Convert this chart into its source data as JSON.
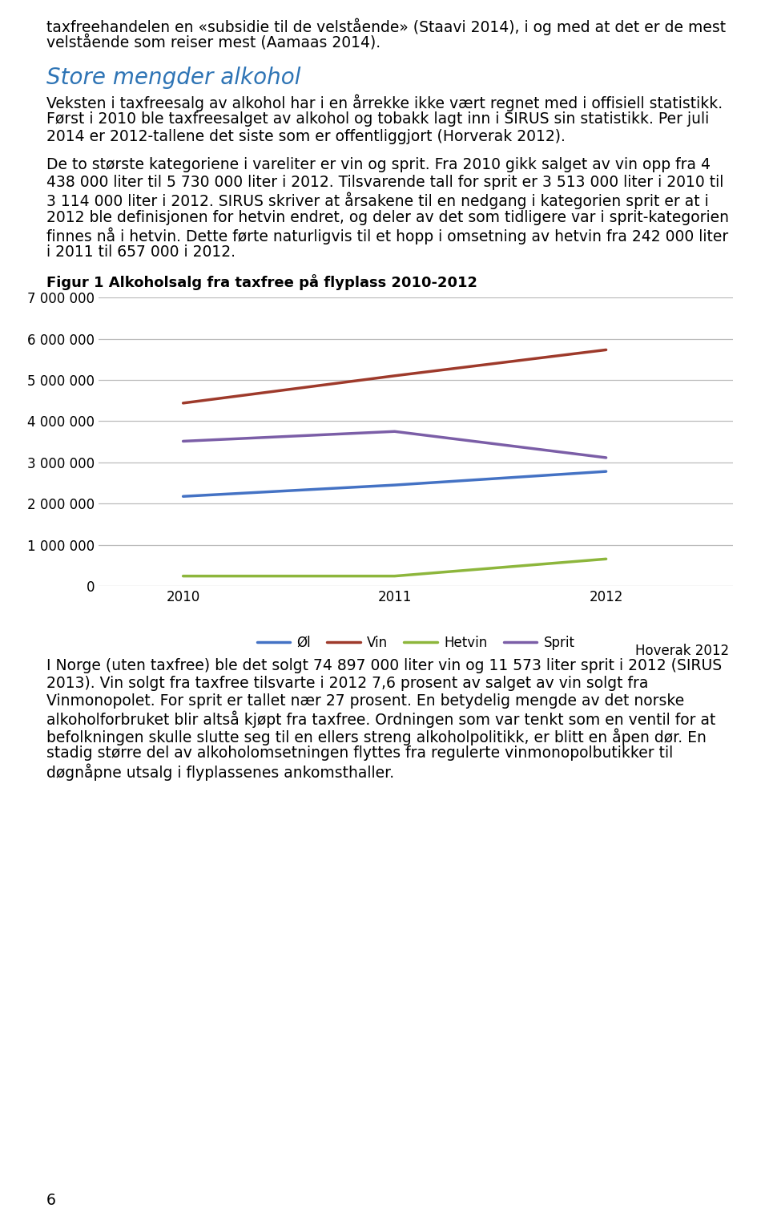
{
  "page_title_lines": [
    "taxfreehandelen en «subsidie til de velstående» (Staavi 2014), i og med at det er de mest",
    "velstående som reiser mest (Aamaas 2014)."
  ],
  "section_heading": "Store mengder alkohol",
  "para1_lines": [
    "Veksten i taxfreesalg av alkohol har i en årrekke ikke vært regnet med i offisiell statistikk.",
    "Først i 2010 ble taxfreesalget av alkohol og tobakk lagt inn i SIRUS sin statistikk. Per juli",
    "2014 er 2012-tallene det siste som er offentliggjort (Horverak 2012)."
  ],
  "para2_lines": [
    "De to største kategoriene i vareliter er vin og sprit. Fra 2010 gikk salget av vin opp fra 4",
    "438 000 liter til 5 730 000 liter i 2012. Tilsvarende tall for sprit er 3 513 000 liter i 2010 til",
    "3 114 000 liter i 2012. SIRUS skriver at årsakene til en nedgang i kategorien sprit er at i",
    "2012 ble definisjonen for hetvin endret, og deler av det som tidligere var i sprit-kategorien",
    "finnes nå i hetvin. Dette førte naturligvis til et hopp i omsetning av hetvin fra 242 000 liter",
    "i 2011 til 657 000 i 2012."
  ],
  "chart_title": "Figur 1 Alkoholsalg fra taxfree på flyplass 2010-2012",
  "years": [
    2010,
    2011,
    2012
  ],
  "series": {
    "Øl": [
      2175000,
      2450000,
      2780000
    ],
    "Vin": [
      4438000,
      5100000,
      5730000
    ],
    "Hetvin": [
      242000,
      242000,
      657000
    ],
    "Sprit": [
      3513000,
      3750000,
      3114000
    ]
  },
  "colors": {
    "Øl": "#4472C4",
    "Vin": "#9E3A2B",
    "Hetvin": "#8DB63C",
    "Sprit": "#7B5EA7"
  },
  "ylim": [
    0,
    7000000
  ],
  "yticks": [
    0,
    1000000,
    2000000,
    3000000,
    4000000,
    5000000,
    6000000,
    7000000
  ],
  "source_note": "Hoverak 2012",
  "footer_lines": [
    "I Norge (uten taxfree) ble det solgt 74 897 000 liter vin og 11 573 liter sprit i 2012 (SIRUS",
    "2013). Vin solgt fra taxfree tilsvarte i 2012 7,6 prosent av salget av vin solgt fra",
    "Vinmonopolet. For sprit er tallet nær 27 prosent. En betydelig mengde av det norske",
    "alkoholforbruket blir altså kjøpt fra taxfree. Ordningen som var tenkt som en ventil for at",
    "befolkningen skulle slutte seg til en ellers streng alkoholpolitikk, er blitt en åpen dør. En",
    "stadig større del av alkoholomsetningen flyttes fra regulerte vinmonopolbutikker til",
    "døgnåpne utsalg i flyplassenes ankomsthaller."
  ],
  "page_number": "6",
  "heading_color": "#2E74B5",
  "body_color": "#000000",
  "grid_color": "#BBBBBB",
  "bg_color": "#FFFFFF",
  "line_width": 2.5,
  "font_size_body": 13.5,
  "font_size_heading": 20,
  "font_size_chart_title": 13,
  "font_size_axis": 12,
  "font_size_legend": 12,
  "font_size_source": 12
}
